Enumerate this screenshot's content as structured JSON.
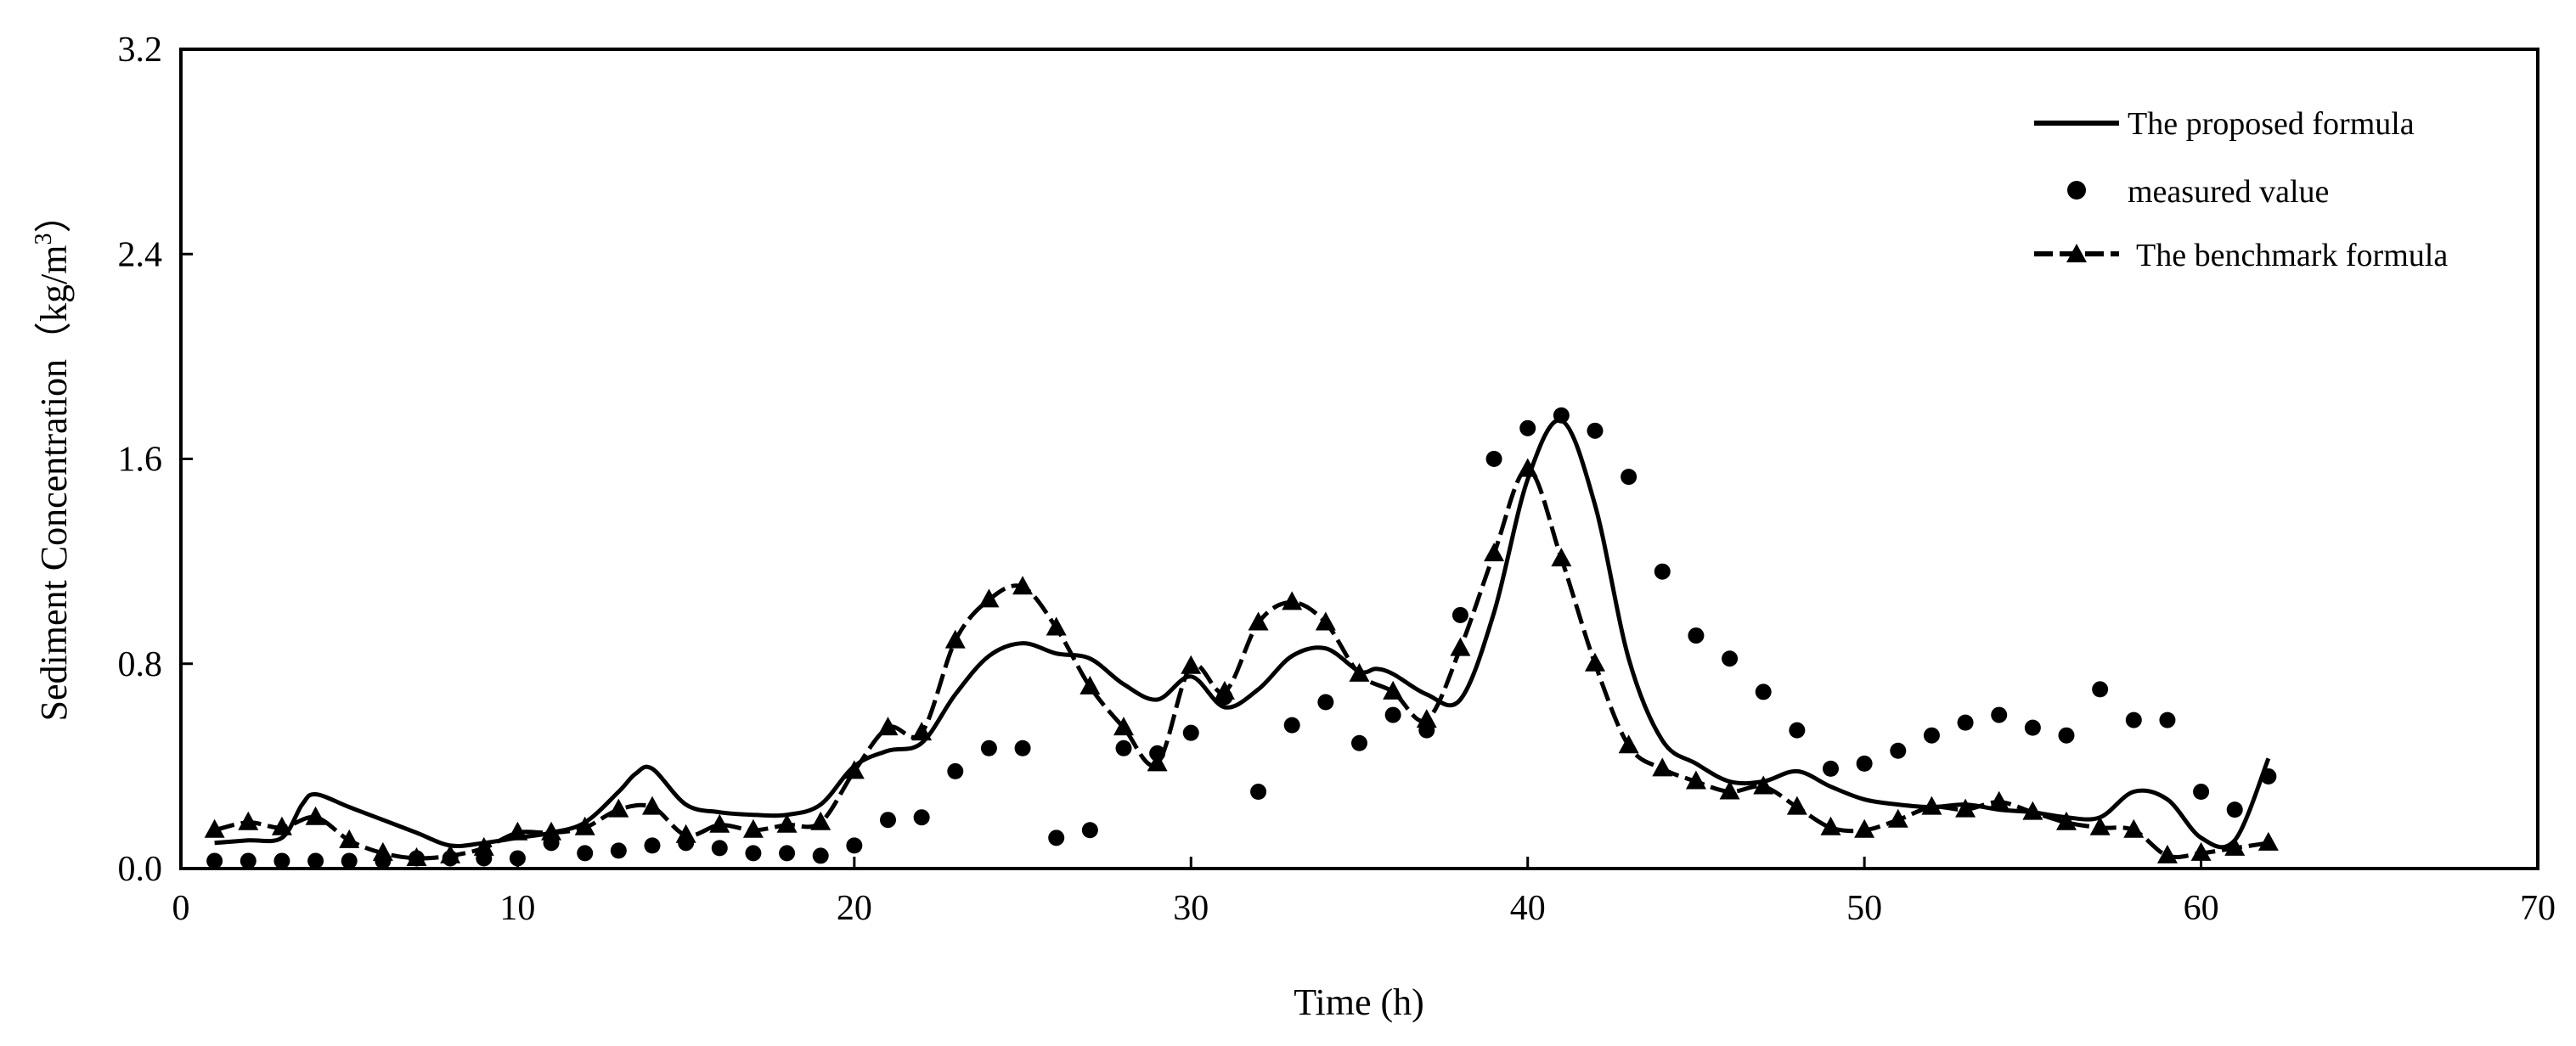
{
  "chart_data": {
    "type": "line",
    "title": "",
    "xlabel": "Time (h)",
    "ylabel": "Sediment Concentration",
    "ylabel_unit": "（kg/m",
    "ylabel_unit_sup": "3",
    "ylabel_unit_close": "）",
    "xlim": [
      0,
      70
    ],
    "ylim": [
      0,
      3.2
    ],
    "xticks": [
      0,
      10,
      20,
      30,
      40,
      50,
      60,
      70
    ],
    "yticks": [
      "0.0",
      "0.8",
      "1.6",
      "2.4",
      "3.2"
    ],
    "legend_position": "top-right",
    "series": [
      {
        "name": "The proposed formula",
        "style": "solid-line",
        "x": [
          1,
          2,
          3,
          3.6,
          4,
          5,
          6,
          7,
          8,
          9,
          10,
          11,
          12,
          13,
          13.5,
          14,
          15,
          16,
          17,
          18,
          19,
          20,
          21,
          22,
          23,
          24,
          25,
          26,
          27,
          28,
          29,
          30,
          31,
          32,
          33,
          34,
          35,
          35.5,
          36,
          37,
          38,
          39,
          40,
          41,
          42,
          43,
          44,
          45,
          46,
          47,
          48,
          49,
          50,
          51,
          52,
          53,
          54,
          55,
          56,
          57,
          58,
          59,
          60,
          61,
          62
        ],
        "values": [
          0.1,
          0.11,
          0.12,
          0.25,
          0.29,
          0.24,
          0.19,
          0.14,
          0.09,
          0.1,
          0.12,
          0.14,
          0.18,
          0.3,
          0.37,
          0.39,
          0.25,
          0.22,
          0.21,
          0.21,
          0.25,
          0.4,
          0.46,
          0.49,
          0.68,
          0.83,
          0.88,
          0.84,
          0.82,
          0.72,
          0.66,
          0.75,
          0.63,
          0.7,
          0.83,
          0.86,
          0.77,
          0.78,
          0.76,
          0.68,
          0.66,
          1.0,
          1.52,
          1.75,
          1.42,
          0.82,
          0.5,
          0.41,
          0.34,
          0.34,
          0.38,
          0.32,
          0.27,
          0.25,
          0.24,
          0.25,
          0.23,
          0.22,
          0.2,
          0.2,
          0.3,
          0.27,
          0.12,
          0.11,
          0.43
        ]
      },
      {
        "name": "measured value",
        "style": "dots",
        "x": [
          1,
          2,
          3,
          4,
          5,
          6,
          7,
          8,
          9,
          10,
          11,
          12,
          13,
          14,
          15,
          16,
          17,
          18,
          19,
          20,
          21,
          22,
          23,
          24,
          25,
          26,
          27,
          28,
          29,
          30,
          31,
          32,
          33,
          34,
          35,
          36,
          37,
          38,
          39,
          40,
          41,
          42,
          43,
          44,
          45,
          46,
          47,
          48,
          49,
          50,
          51,
          52,
          53,
          54,
          55,
          56,
          57,
          58,
          59,
          60,
          61,
          62
        ],
        "values": [
          0.03,
          0.03,
          0.03,
          0.03,
          0.03,
          0.03,
          0.04,
          0.04,
          0.04,
          0.04,
          0.1,
          0.06,
          0.07,
          0.09,
          0.1,
          0.08,
          0.06,
          0.06,
          0.05,
          0.09,
          0.19,
          0.2,
          0.38,
          0.47,
          0.47,
          0.12,
          0.15,
          0.47,
          0.45,
          0.53,
          0.67,
          0.3,
          0.56,
          0.65,
          0.49,
          0.6,
          0.54,
          0.99,
          1.6,
          1.72,
          1.77,
          1.71,
          1.53,
          1.16,
          0.91,
          0.82,
          0.69,
          0.54,
          0.39,
          0.41,
          0.46,
          0.52,
          0.57,
          0.6,
          0.55,
          0.52,
          0.7,
          0.58,
          0.58,
          0.3,
          0.23,
          0.36
        ]
      },
      {
        "name": "The benchmark formula",
        "style": "dashed-line-triangles",
        "x": [
          1,
          2,
          3,
          4,
          5,
          6,
          7,
          8,
          9,
          10,
          11,
          12,
          13,
          14,
          15,
          16,
          17,
          18,
          19,
          20,
          21,
          22,
          23,
          24,
          25,
          26,
          27,
          28,
          29,
          30,
          31,
          32,
          33,
          34,
          35,
          36,
          37,
          38,
          39,
          40,
          41,
          42,
          43,
          44,
          45,
          46,
          47,
          48,
          49,
          50,
          51,
          52,
          53,
          54,
          55,
          56,
          57,
          58,
          59,
          60,
          61,
          62
        ],
        "values": [
          0.15,
          0.18,
          0.16,
          0.2,
          0.11,
          0.06,
          0.04,
          0.05,
          0.08,
          0.14,
          0.14,
          0.16,
          0.23,
          0.24,
          0.13,
          0.17,
          0.15,
          0.17,
          0.18,
          0.38,
          0.55,
          0.53,
          0.89,
          1.05,
          1.1,
          0.94,
          0.71,
          0.55,
          0.41,
          0.79,
          0.69,
          0.96,
          1.04,
          0.96,
          0.76,
          0.69,
          0.58,
          0.86,
          1.23,
          1.56,
          1.21,
          0.8,
          0.48,
          0.39,
          0.34,
          0.3,
          0.32,
          0.24,
          0.16,
          0.15,
          0.19,
          0.24,
          0.23,
          0.26,
          0.22,
          0.18,
          0.16,
          0.15,
          0.05,
          0.06,
          0.08,
          0.1
        ]
      }
    ]
  }
}
